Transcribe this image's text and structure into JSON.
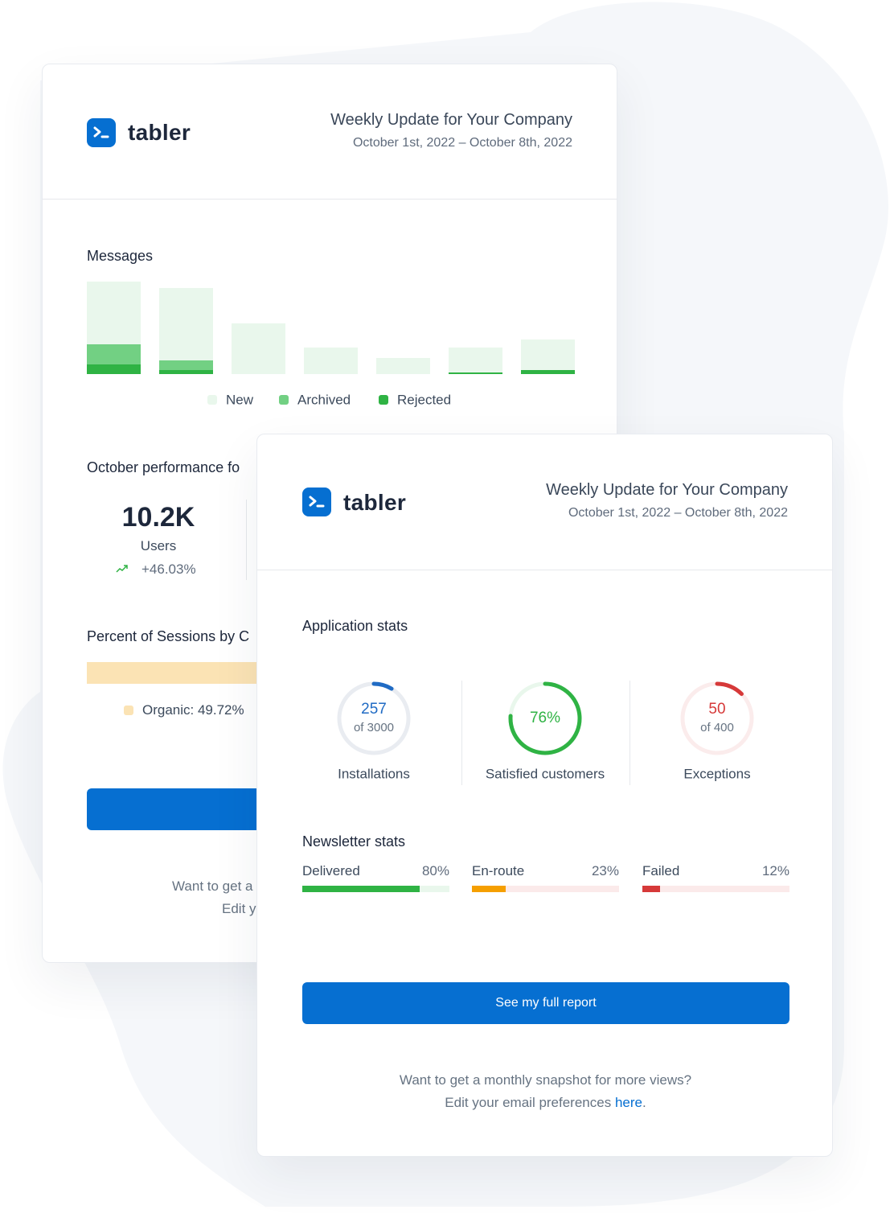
{
  "back_card": {
    "brand": "tabler",
    "header": {
      "title": "Weekly Update for Your Company",
      "date_range": "October 1st, 2022 – October 8th, 2022"
    },
    "messages": {
      "title": "Messages",
      "chart_data": {
        "type": "bar",
        "stacked": true,
        "categories": [
          null,
          null,
          null,
          null,
          null,
          null,
          null
        ],
        "series": [
          {
            "name": "New",
            "color": "#e9f7ec",
            "values": [
              78,
              90,
              63,
              33,
              20,
              31,
              38
            ]
          },
          {
            "name": "Archived",
            "color": "#72d083",
            "values": [
              25,
              12,
              0,
              0,
              0,
              0,
              0
            ]
          },
          {
            "name": "Rejected",
            "color": "#2fb344",
            "values": [
              12,
              5,
              0,
              0,
              0,
              2,
              5
            ]
          }
        ]
      }
    },
    "performance": {
      "title": "October performance fo",
      "stat": {
        "value": "10.2K",
        "label": "Users",
        "change": "+46.03%"
      }
    },
    "sessions": {
      "title": "Percent of Sessions by C",
      "series": [
        {
          "name": "Organic",
          "value": 49.72,
          "value_label": "Organic: 49.72%",
          "color": "#fbe3b4"
        }
      ]
    },
    "footer": {
      "line1": "Want to get a",
      "line2": "Edit y"
    }
  },
  "front_card": {
    "brand": "tabler",
    "header": {
      "title": "Weekly Update for Your Company",
      "date_range": "October 1st, 2022 – October 8th, 2022"
    },
    "application_stats": {
      "title": "Application stats",
      "items": [
        {
          "value": 257,
          "total": 3000,
          "total_label": "of 3000",
          "label": "Installations",
          "color": "#206bc4",
          "track": "#e9ecf1"
        },
        {
          "value": 76,
          "value_label": "76%",
          "label": "Satisfied customers",
          "color": "#2fb344",
          "track": "#e9f7ec"
        },
        {
          "value": 50,
          "total": 400,
          "total_label": "of 400",
          "label": "Exceptions",
          "color": "#d63939",
          "track": "#fbecec"
        }
      ]
    },
    "newsletter_stats": {
      "title": "Newsletter stats",
      "items": [
        {
          "label": "Delivered",
          "value": 80,
          "value_label": "80%",
          "color": "#2fb344",
          "track": "#e9f7ec"
        },
        {
          "label": "En-route",
          "value": 23,
          "value_label": "23%",
          "color": "#f59f00",
          "track": "#fbeaea"
        },
        {
          "label": "Failed",
          "value": 12,
          "value_label": "12%",
          "color": "#d63939",
          "track": "#fbeaea"
        }
      ]
    },
    "button": "See my full report",
    "footer": {
      "line1": "Want to get a monthly snapshot for more views?",
      "line2": "Edit your email preferences",
      "link": "here",
      "line2_end": "."
    }
  }
}
